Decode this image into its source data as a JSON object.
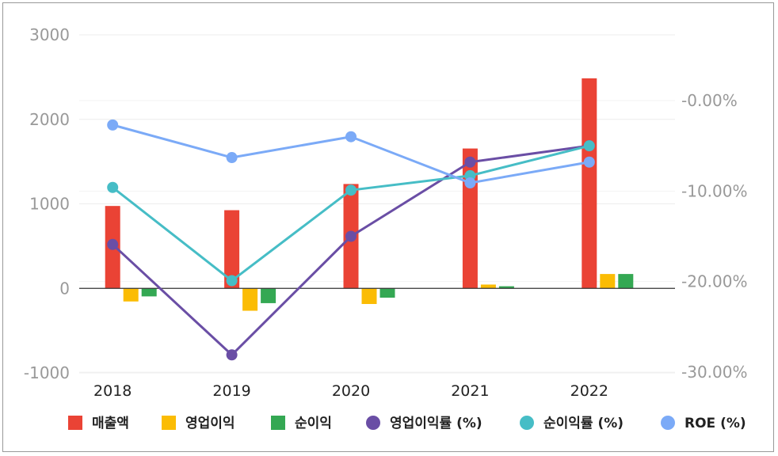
{
  "chart_data": {
    "type": "bar",
    "categories": [
      "2018",
      "2019",
      "2020",
      "2021",
      "2022"
    ],
    "ylim_left": [
      -1000,
      3000
    ],
    "yticks_left": [
      "3000",
      "2000",
      "1000",
      "0",
      "-1000"
    ],
    "ylim_right": [
      -30,
      0
    ],
    "yticks_right": [
      "-0.00%",
      "-10.00%",
      "-20.00%",
      "-30.00%"
    ],
    "grid": true,
    "legend_position": "bottom",
    "bar_series": [
      {
        "name": "매출액",
        "color": "#EA4335",
        "values": [
          975,
          925,
          1235,
          1655,
          2485
        ]
      },
      {
        "name": "영업이익",
        "color": "#FBBC04",
        "values": [
          -155,
          -265,
          -185,
          45,
          170
        ]
      },
      {
        "name": "순이익",
        "color": "#34A853",
        "values": [
          -95,
          -175,
          -110,
          25,
          170
        ]
      }
    ],
    "line_series": [
      {
        "name": "영업이익률 (%)",
        "color": "#6A4EA5",
        "values": [
          -15.9,
          -28.1,
          -15.0,
          -6.8,
          -5.0
        ]
      },
      {
        "name": "순이익률 (%)",
        "color": "#46BDC6",
        "values": [
          -9.6,
          -19.9,
          -9.9,
          -8.3,
          -5.0
        ]
      },
      {
        "name": "ROE (%)",
        "color": "#7BAAF7",
        "values": [
          -2.7,
          -6.3,
          -4.0,
          -9.1,
          -6.8
        ]
      }
    ],
    "legend": [
      {
        "label": "매출액",
        "marker": "square",
        "color": "#EA4335"
      },
      {
        "label": "영업이익",
        "marker": "square",
        "color": "#FBBC04"
      },
      {
        "label": "순이익",
        "marker": "square",
        "color": "#34A853"
      },
      {
        "label": "영업이익률 (%)",
        "marker": "circle",
        "color": "#6A4EA5"
      },
      {
        "label": "순이익률 (%)",
        "marker": "circle",
        "color": "#46BDC6"
      },
      {
        "label": "ROE (%)",
        "marker": "circle",
        "color": "#7BAAF7"
      }
    ]
  }
}
